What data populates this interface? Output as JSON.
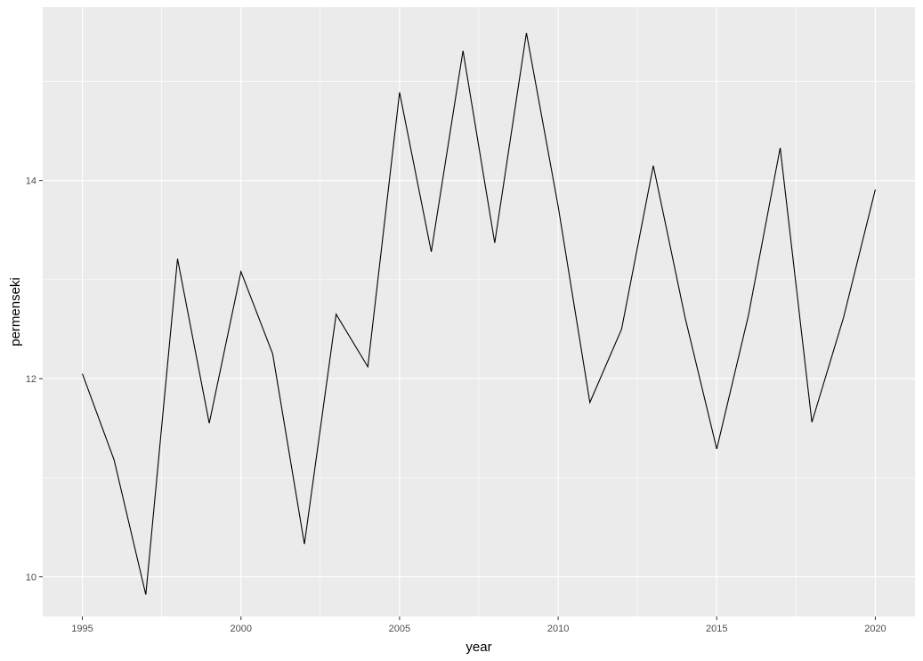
{
  "chart_data": {
    "type": "line",
    "xlabel": "year",
    "ylabel": "permenseki",
    "xlim": [
      1993.75,
      2021.25
    ],
    "ylim": [
      9.6,
      15.75
    ],
    "x_ticks": [
      1995,
      2000,
      2005,
      2010,
      2015,
      2020
    ],
    "y_ticks": [
      10,
      12,
      14
    ],
    "grid": true,
    "background": "#ebebeb",
    "gridline_color": "#ffffff",
    "line_color": "#000000",
    "series": [
      {
        "x": [
          1995,
          1996,
          1997,
          1998,
          1999,
          2000,
          2001,
          2002,
          2003,
          2004,
          2005,
          2006,
          2007,
          2008,
          2009,
          2010,
          2011,
          2012,
          2013,
          2014,
          2015,
          2016,
          2017,
          2018,
          2019,
          2020
        ],
        "values": [
          12.05,
          11.18,
          9.82,
          13.21,
          11.55,
          13.08,
          12.25,
          10.33,
          12.65,
          12.12,
          14.89,
          13.28,
          15.31,
          13.37,
          15.49,
          13.74,
          11.76,
          12.5,
          14.15,
          12.62,
          11.29,
          12.64,
          14.33,
          11.56,
          12.62,
          13.91
        ]
      }
    ]
  }
}
